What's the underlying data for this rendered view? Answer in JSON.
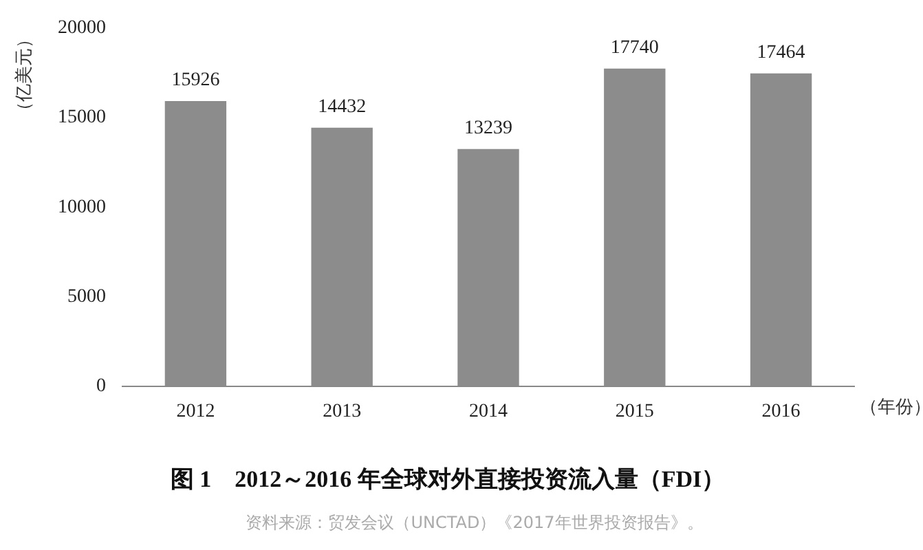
{
  "chart_data": {
    "type": "bar",
    "title": "图 1　2012～2016 年全球对外直接投资流入量（FDI）",
    "xlabel": "（年份）",
    "ylabel": "（亿美元）",
    "categories": [
      "2012",
      "2013",
      "2014",
      "2015",
      "2016"
    ],
    "values": [
      15926,
      14432,
      13239,
      17740,
      17464
    ],
    "color": "#8c8c8c",
    "ylim": [
      0,
      20000
    ],
    "yticks": [
      0,
      5000,
      10000,
      15000,
      20000
    ],
    "grid": false,
    "data_labels": true,
    "annotations": [
      "资料来源：贸发会议（UNCTAD）《2017年世界投资报告》。"
    ]
  }
}
